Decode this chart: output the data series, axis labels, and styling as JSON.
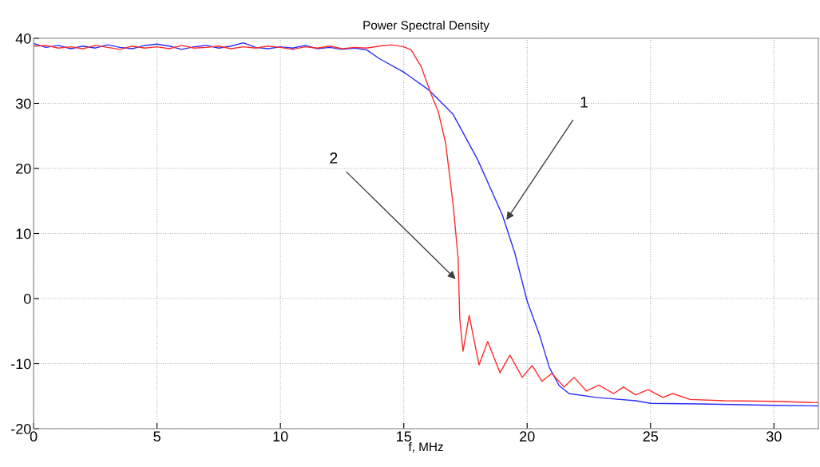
{
  "chart_data": {
    "type": "line",
    "title": "Power Spectral Density",
    "xlabel": "f, MHz",
    "xlim": [
      0,
      31.8
    ],
    "ylim": [
      -20,
      40
    ],
    "xticks": [
      0,
      5,
      10,
      15,
      20,
      25,
      30
    ],
    "yticks": [
      -20,
      -10,
      0,
      10,
      20,
      30,
      40
    ],
    "grid": true,
    "line_style": "solid",
    "series": [
      {
        "color": "#2b2bff",
        "x": [
          0,
          0.5,
          1,
          1.5,
          2,
          2.5,
          3,
          3.5,
          4,
          4.5,
          5,
          5.5,
          6,
          6.5,
          7,
          7.5,
          8,
          8.5,
          9,
          9.5,
          10,
          10.5,
          11,
          11.5,
          12,
          12.5,
          13,
          13.5,
          14,
          15,
          16,
          17,
          18,
          19,
          19.5,
          20,
          20.5,
          20.9,
          21.3,
          21.7,
          22.8,
          24.4,
          25,
          27,
          30,
          31.8
        ],
        "values": [
          39.2,
          38.6,
          38.9,
          38.4,
          38.8,
          38.5,
          39.0,
          38.6,
          38.4,
          38.9,
          39.1,
          38.8,
          38.3,
          38.7,
          38.9,
          38.5,
          38.8,
          39.3,
          38.6,
          38.4,
          38.7,
          38.5,
          38.9,
          38.4,
          38.6,
          38.3,
          38.5,
          38.2,
          36.9,
          34.8,
          32.1,
          28.3,
          21.3,
          12.8,
          7.0,
          -0.4,
          -5.6,
          -10.6,
          -13.4,
          -14.6,
          -15.2,
          -15.7,
          -16.1,
          -16.2,
          -16.4,
          -16.5
        ]
      },
      {
        "color": "#ff2b2b",
        "x": [
          0,
          0.5,
          1,
          1.5,
          2,
          2.5,
          3,
          3.5,
          4,
          4.5,
          5,
          5.5,
          6,
          6.5,
          7,
          7.5,
          8,
          8.5,
          9,
          9.5,
          10,
          10.5,
          11,
          11.5,
          12,
          12.5,
          13,
          13.5,
          14,
          14.5,
          15,
          15.3,
          15.7,
          16.1,
          16.4,
          16.7,
          17.0,
          17.2,
          17.27,
          17.4,
          17.65,
          18.05,
          18.4,
          18.9,
          19.3,
          19.8,
          20.2,
          20.6,
          21.0,
          21.5,
          21.9,
          22.4,
          22.9,
          23.5,
          23.9,
          24.4,
          24.9,
          25.5,
          25.9,
          26.6,
          28,
          30,
          31.8
        ],
        "values": [
          38.8,
          38.9,
          38.5,
          38.7,
          38.4,
          38.9,
          38.6,
          38.3,
          38.8,
          38.5,
          38.7,
          38.4,
          38.9,
          38.5,
          38.6,
          38.8,
          38.4,
          38.7,
          38.5,
          38.8,
          38.6,
          38.3,
          38.7,
          38.5,
          38.8,
          38.4,
          38.6,
          38.5,
          38.8,
          39.0,
          38.7,
          38.2,
          35.7,
          31.5,
          28.7,
          23.8,
          14.4,
          6.3,
          -3.2,
          -8.1,
          -2.6,
          -10.2,
          -6.6,
          -11.4,
          -8.7,
          -12.1,
          -10.3,
          -12.7,
          -11.5,
          -13.6,
          -12.1,
          -14.2,
          -13.3,
          -14.6,
          -13.6,
          -14.8,
          -14.0,
          -15.2,
          -14.6,
          -15.5,
          -15.7,
          -15.8,
          -16.0
        ]
      }
    ],
    "annotations": [
      {
        "text": "1",
        "x": 19.16,
        "y": 12.1
      },
      {
        "text": "2",
        "x": 17.1,
        "y": 3
      }
    ]
  }
}
